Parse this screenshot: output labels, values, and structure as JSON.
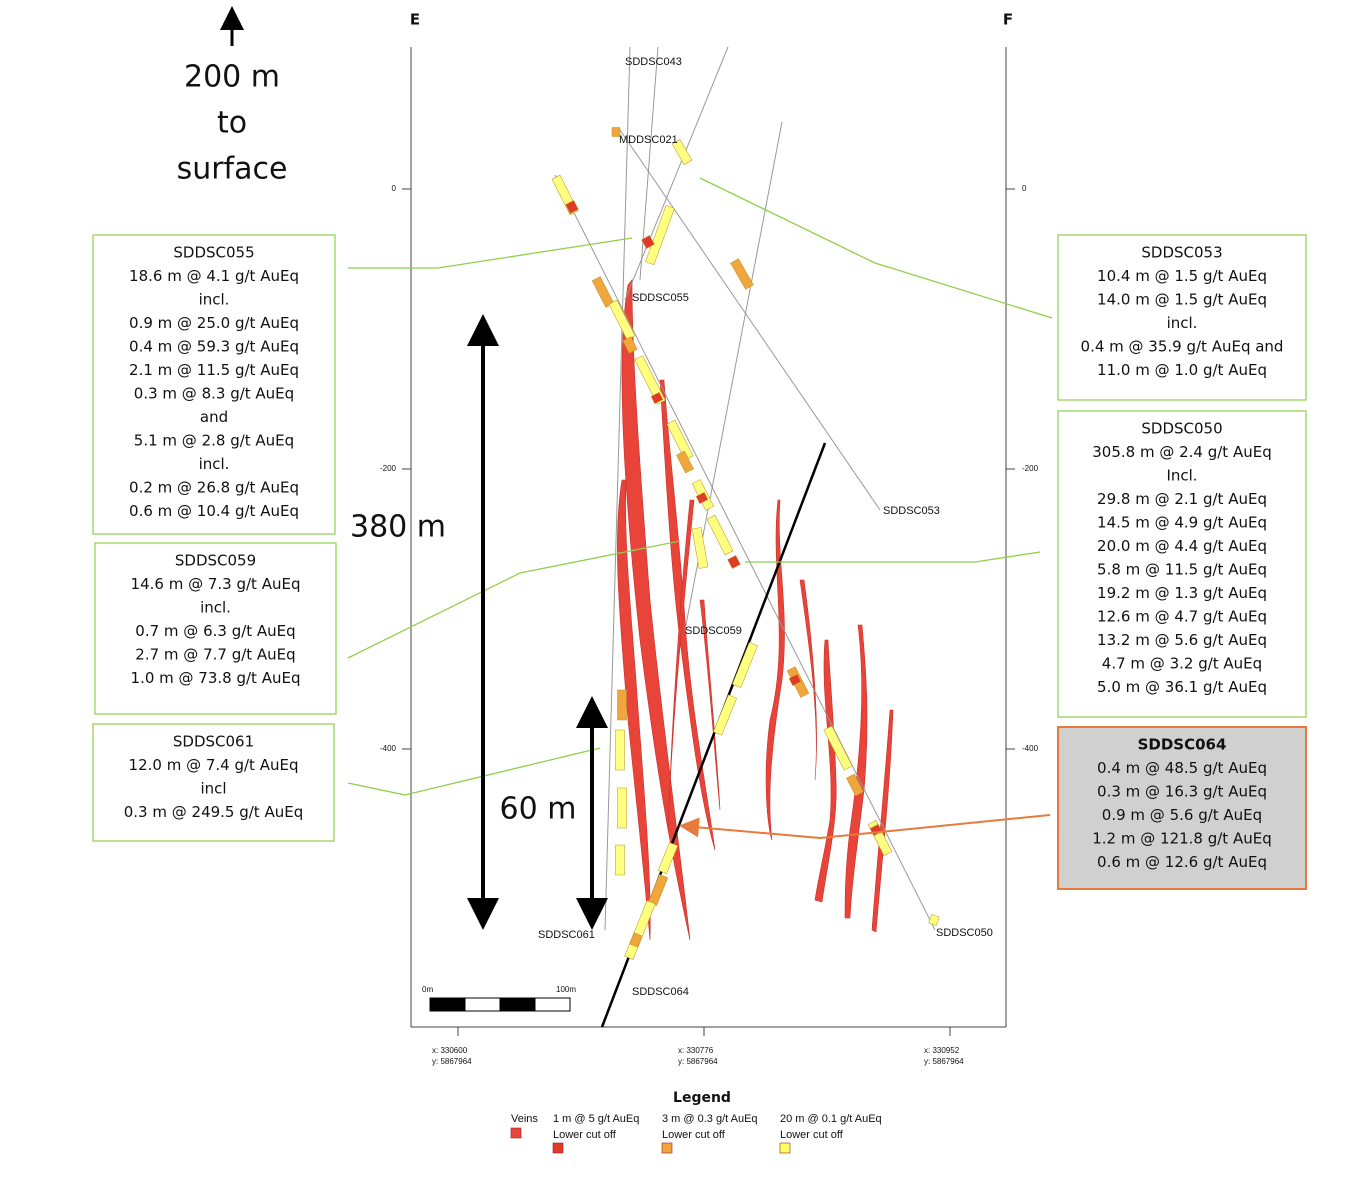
{
  "surface_note": [
    "200 m",
    "to",
    "surface"
  ],
  "section_ends": [
    "E",
    "F"
  ],
  "elevation_ticks_left": [
    "0",
    "-200",
    "-400"
  ],
  "elevation_ticks_right": [
    "0",
    "-200",
    "-400"
  ],
  "easting_ticks": [
    {
      "x": "x: 330600",
      "y": "y: 5867964"
    },
    {
      "x": "x: 330776",
      "y": "y: 5867964"
    },
    {
      "x": "x: 330952",
      "y": "y: 5867964"
    }
  ],
  "scale_bar": {
    "start": "0m",
    "end": "100m"
  },
  "dimensions": [
    "380 m",
    "60 m"
  ],
  "drillhole_labels": [
    "SDDSC043",
    "MDDSC021",
    "SDDSC055",
    "SDDSC053",
    "SDDSC059",
    "SDDSC061",
    "SDDSC050",
    "SDDSC064"
  ],
  "callouts": [
    {
      "title": "SDDSC055",
      "lines": [
        "18.6 m @ 4.1 g/t AuEq",
        "incl.",
        "0.9 m @ 25.0 g/t AuEq",
        "0.4 m @ 59.3 g/t AuEq",
        "2.1 m @ 11.5 g/t AuEq",
        "0.3 m @ 8.3 g/t AuEq",
        "and",
        "5.1 m @ 2.8 g/t AuEq",
        "incl.",
        "0.2 m @ 26.8 g/t AuEq",
        "0.6 m @ 10.4 g/t AuEq"
      ]
    },
    {
      "title": "SDDSC059",
      "lines": [
        "14.6 m @ 7.3 g/t AuEq",
        "incl.",
        "0.7 m @ 6.3 g/t AuEq",
        "2.7 m @ 7.7 g/t AuEq",
        "1.0 m @ 73.8 g/t AuEq"
      ]
    },
    {
      "title": "SDDSC061",
      "lines": [
        "12.0 m @ 7.4 g/t AuEq",
        "incl",
        "0.3 m @ 249.5 g/t AuEq"
      ]
    },
    {
      "title": "SDDSC053",
      "lines": [
        "10.4 m @ 1.5 g/t AuEq",
        "14.0 m @ 1.5 g/t AuEq",
        "incl.",
        "0.4 m @ 35.9 g/t AuEq and",
        "11.0 m @ 1.0 g/t AuEq"
      ]
    },
    {
      "title": "SDDSC050",
      "lines": [
        "305.8 m @ 2.4 g/t AuEq",
        "Incl.",
        "29.8 m @ 2.1 g/t AuEq",
        "14.5 m @ 4.9 g/t AuEq",
        "20.0 m @ 4.4 g/t AuEq",
        "5.8 m @ 11.5 g/t AuEq",
        "19.2 m @ 1.3 g/t AuEq",
        "12.6 m @ 4.7 g/t AuEq",
        "13.2 m @ 5.6 g/t AuEq",
        "4.7 m @ 3.2 g/t AuEq",
        "5.0 m @ 36.1 g/t AuEq"
      ]
    },
    {
      "title": "SDDSC064",
      "lines": [
        "0.4 m @ 48.5 g/t AuEq",
        "0.3 m @ 16.3 g/t AuEq",
        "0.9 m @ 5.6 g/t AuEq",
        "1.2 m @ 121.8 g/t AuEq",
        "0.6 m @ 12.6 g/t AuEq"
      ]
    }
  ],
  "legend": {
    "title": "Legend",
    "items": [
      {
        "label": "Veins"
      },
      {
        "label": "1 m @ 5 g/t AuEq",
        "sublabel": "Lower cut off"
      },
      {
        "label": "3 m @ 0.3 g/t AuEq",
        "sublabel": "Lower cut off"
      },
      {
        "label": "20 m @ 0.1 g/t AuEq",
        "sublabel": "Lower cut off"
      }
    ]
  }
}
